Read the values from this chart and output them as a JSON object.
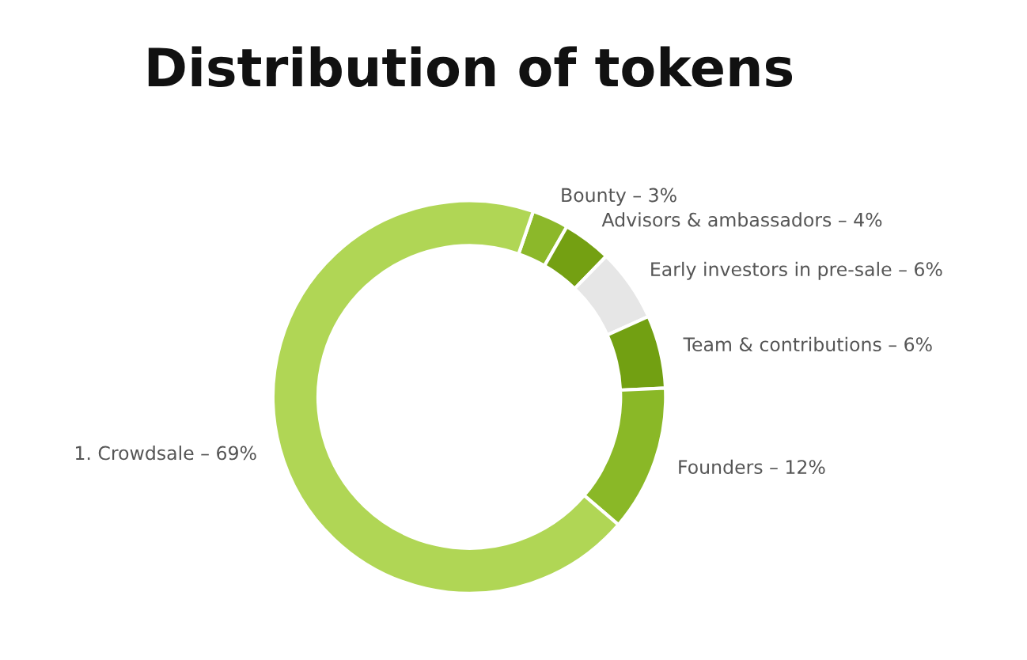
{
  "chart_data": {
    "type": "donut",
    "title": "Distribution of tokens",
    "categories": [
      "Bounty – 3%",
      "Advisors & ambassadors – 4%",
      "Early investors in pre-sale – 6%",
      "Team & contributions – 6%",
      "Founders – 12%",
      "1. Crowdsale – 69%"
    ],
    "values": [
      3,
      4,
      6,
      6,
      12,
      69
    ],
    "colors": [
      "#8cb82a",
      "#74a012",
      "#e6e6e6",
      "#72a012",
      "#8ab827",
      "#b0d655"
    ],
    "legend": false
  }
}
